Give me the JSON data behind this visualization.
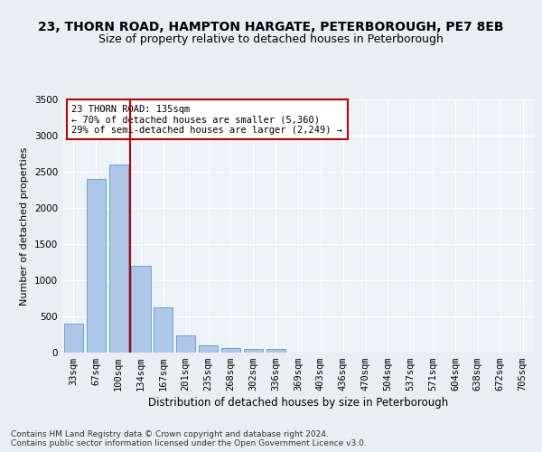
{
  "title1": "23, THORN ROAD, HAMPTON HARGATE, PETERBOROUGH, PE7 8EB",
  "title2": "Size of property relative to detached houses in Peterborough",
  "xlabel": "Distribution of detached houses by size in Peterborough",
  "ylabel": "Number of detached properties",
  "categories": [
    "33sqm",
    "67sqm",
    "100sqm",
    "134sqm",
    "167sqm",
    "201sqm",
    "235sqm",
    "268sqm",
    "302sqm",
    "336sqm",
    "369sqm",
    "403sqm",
    "436sqm",
    "470sqm",
    "504sqm",
    "537sqm",
    "571sqm",
    "604sqm",
    "638sqm",
    "672sqm",
    "705sqm"
  ],
  "values": [
    400,
    2400,
    2600,
    1200,
    620,
    240,
    100,
    65,
    55,
    50,
    0,
    0,
    0,
    0,
    0,
    0,
    0,
    0,
    0,
    0,
    0
  ],
  "bar_color": "#aec6e8",
  "bar_edge_color": "#5b9bd5",
  "vline_x": 2.5,
  "vline_color": "#c00000",
  "annotation_line1": "23 THORN ROAD: 135sqm",
  "annotation_line2": "← 70% of detached houses are smaller (5,360)",
  "annotation_line3": "29% of semi-detached houses are larger (2,249) →",
  "annotation_box_color": "#ffffff",
  "annotation_box_edge": "#c00000",
  "ylim": [
    0,
    3500
  ],
  "yticks": [
    0,
    500,
    1000,
    1500,
    2000,
    2500,
    3000,
    3500
  ],
  "bg_color": "#e8eef4",
  "plot_bg_color": "#edf2f8",
  "footer1": "Contains HM Land Registry data © Crown copyright and database right 2024.",
  "footer2": "Contains public sector information licensed under the Open Government Licence v3.0.",
  "title1_fontsize": 10,
  "title2_fontsize": 9,
  "xlabel_fontsize": 8.5,
  "ylabel_fontsize": 8,
  "tick_fontsize": 7.5,
  "annotation_fontsize": 7.5,
  "footer_fontsize": 6.5
}
